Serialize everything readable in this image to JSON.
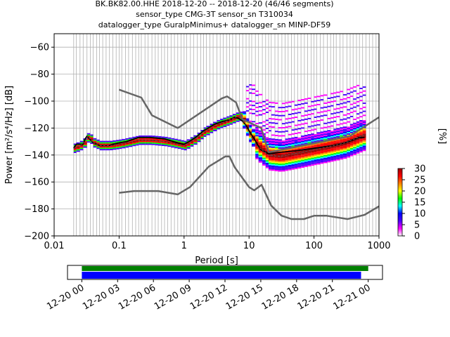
{
  "title_lines": [
    "BK.BK82.00.HHE   2018-12-20 -- 2018-12-20  (46/46 segments)",
    "sensor_type CMG-3T sensor_sn T310034",
    "datalogger_type GuralpMinimus+ datalogger_sn MINP-DF59"
  ],
  "chart_data": {
    "type": "heatmap",
    "xlabel": "Period [s]",
    "ylabel": "Power [m²/s⁴/Hz] [dB]",
    "xscale": "log",
    "xlim": [
      0.01,
      1000
    ],
    "ylim": [
      -200,
      -50
    ],
    "x_ticks": [
      {
        "v": 0.01,
        "label": "0.01"
      },
      {
        "v": 0.1,
        "label": "0.1"
      },
      {
        "v": 1,
        "label": "1"
      },
      {
        "v": 10,
        "label": "10"
      },
      {
        "v": 100,
        "label": "100"
      },
      {
        "v": 1000,
        "label": "1000"
      }
    ],
    "y_ticks": [
      {
        "v": -60,
        "label": "−60"
      },
      {
        "v": -80,
        "label": "−80"
      },
      {
        "v": -100,
        "label": "−100"
      },
      {
        "v": -120,
        "label": "−120"
      },
      {
        "v": -140,
        "label": "−140"
      },
      {
        "v": -160,
        "label": "−160"
      },
      {
        "v": -180,
        "label": "−180"
      },
      {
        "v": -200,
        "label": "−200"
      }
    ],
    "grid": true,
    "period_grid_lines": [
      0.02,
      0.022,
      0.025,
      0.028,
      0.032,
      0.036,
      0.04,
      0.045,
      0.05,
      0.056,
      0.063,
      0.071,
      0.08,
      0.09,
      0.1,
      0.11,
      0.125,
      0.14,
      0.16,
      0.18,
      0.2,
      0.22,
      0.25,
      0.28,
      0.32,
      0.36,
      0.4,
      0.45,
      0.5,
      0.56,
      0.63,
      0.71,
      0.8,
      0.9,
      1,
      1.1,
      1.25,
      1.4,
      1.6,
      1.8,
      2,
      2.2,
      2.5,
      2.8,
      3.2,
      3.6,
      4,
      4.5,
      5,
      5.6,
      6.3,
      7.1,
      8,
      9,
      10,
      11,
      12.5,
      14,
      16,
      18,
      20,
      22,
      25,
      28,
      32,
      36,
      40,
      45,
      50,
      56,
      63,
      71,
      80,
      90,
      100,
      110,
      125,
      140,
      160,
      180,
      200,
      220,
      250,
      280,
      320,
      360,
      400,
      450,
      500,
      560,
      630,
      710,
      800,
      900
    ],
    "nhnm": {
      "period": [
        0.1,
        0.22,
        0.32,
        0.8,
        3.8,
        4.6,
        6.3,
        7.9,
        15.4,
        20,
        354.8,
        1000
      ],
      "db": [
        -91.5,
        -97.4,
        -110.5,
        -120.0,
        -98.0,
        -96.5,
        -101.0,
        -113.5,
        -120.0,
        -138.0,
        -126.0,
        -112.0
      ]
    },
    "nlnm": {
      "period": [
        0.1,
        0.17,
        0.4,
        0.8,
        1.24,
        2.4,
        4.3,
        5.0,
        6.0,
        10.0,
        12.0,
        15.6,
        21.9,
        31.6,
        45.0,
        70.0,
        101.0,
        154.0,
        328.0,
        600.0,
        1000.0
      ],
      "db": [
        -168.0,
        -166.7,
        -166.7,
        -169.2,
        -163.7,
        -148.6,
        -141.1,
        -141.1,
        -149.0,
        -163.8,
        -166.2,
        -162.1,
        -177.5,
        -185.0,
        -187.5,
        -187.5,
        -185.0,
        -185.0,
        -187.5,
        -184.4,
        -178.0
      ]
    },
    "mean_curve": {
      "period": [
        0.02,
        0.022,
        0.025,
        0.028,
        0.03,
        0.032,
        0.035,
        0.04,
        0.045,
        0.05,
        0.06,
        0.07,
        0.08,
        0.1,
        0.13,
        0.2,
        0.3,
        0.5,
        0.8,
        1.0,
        1.2,
        1.5,
        2,
        3,
        4,
        5,
        6,
        7,
        8,
        9,
        10,
        12,
        15,
        20,
        30,
        50,
        100,
        200,
        300,
        500,
        600
      ],
      "db": [
        -135,
        -132,
        -132,
        -132,
        -128,
        -126,
        -128,
        -131,
        -132,
        -133,
        -133,
        -133,
        -132,
        -131,
        -130,
        -127,
        -127,
        -128,
        -131,
        -132,
        -130,
        -127,
        -122,
        -117,
        -115,
        -114,
        -112,
        -113,
        -115,
        -118,
        -122,
        -128,
        -136,
        -139,
        -138,
        -137,
        -135,
        -133,
        -131,
        -127,
        -127
      ]
    },
    "mode_curve": {
      "period": [
        0.02,
        0.025,
        0.03,
        0.033,
        0.04,
        0.05,
        0.07,
        0.1,
        0.2,
        0.3,
        0.5,
        0.8,
        1.0,
        1.5,
        2,
        3,
        5,
        7,
        8,
        10,
        13,
        20,
        30,
        50,
        100,
        200,
        300,
        600
      ],
      "db": [
        -135,
        -133,
        -130,
        -126,
        -131,
        -133,
        -133,
        -132,
        -129,
        -129,
        -130,
        -132,
        -133,
        -128,
        -123,
        -118,
        -114,
        -111,
        -114,
        -124,
        -133,
        -140,
        -141,
        -139,
        -136,
        -133,
        -131,
        -125
      ]
    },
    "colorbar": {
      "label": "[%]",
      "ticks": [
        {
          "v": 0,
          "label": "0"
        },
        {
          "v": 5,
          "label": "5"
        },
        {
          "v": 10,
          "label": "10"
        },
        {
          "v": 15,
          "label": "15"
        },
        {
          "v": 20,
          "label": "20"
        },
        {
          "v": 25,
          "label": "25"
        },
        {
          "v": 30,
          "label": "30"
        }
      ],
      "range": [
        0,
        30
      ],
      "colors": [
        "#ffffff",
        "#ff00ff",
        "#4b00ff",
        "#0000ff",
        "#00ffff",
        "#00ff00",
        "#ffff00",
        "#ff8000",
        "#ff0000",
        "#990000"
      ]
    },
    "timeline": {
      "ticks": [
        {
          "hour": 0,
          "label": "12-20 00"
        },
        {
          "hour": 3,
          "label": "12-20 03"
        },
        {
          "hour": 6,
          "label": "12-20 06"
        },
        {
          "hour": 9,
          "label": "12-20 09"
        },
        {
          "hour": 12,
          "label": "12-20 12"
        },
        {
          "hour": 15,
          "label": "12-20 15"
        },
        {
          "hour": 18,
          "label": "12-20 18"
        },
        {
          "hour": 21,
          "label": "12-20 21"
        },
        {
          "hour": 24,
          "label": "12-21 00"
        }
      ],
      "xlim_hours": [
        -1.2,
        25.2
      ],
      "data_coverage": {
        "start_hour": 0,
        "end_hour": 24.0,
        "color": "#008000"
      },
      "psd_coverage": {
        "start_hour": 0,
        "end_hour": 23.4,
        "color": "#0000ff"
      }
    }
  }
}
